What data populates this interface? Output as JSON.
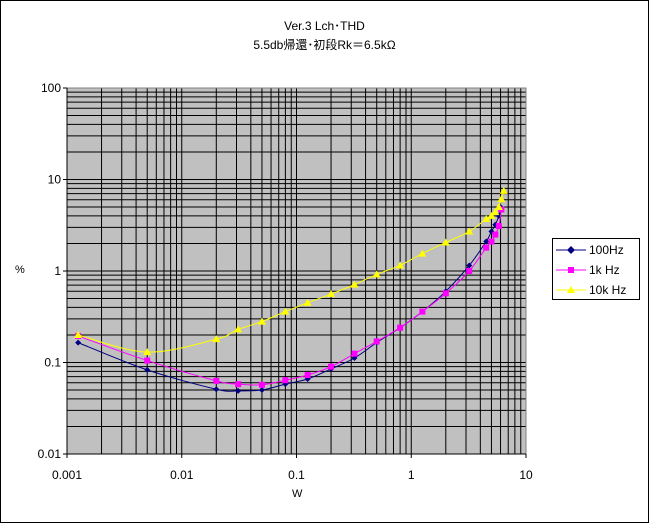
{
  "chart_data": {
    "type": "scatter",
    "title": "Ver.3 Lch･THD",
    "subtitle": "5.5db帰還･初段Rk＝6.5kΩ",
    "xlabel": "W",
    "ylabel": "%",
    "xscale": "log",
    "yscale": "log",
    "xlim": [
      0.001,
      10
    ],
    "ylim": [
      0.01,
      100
    ],
    "xticks": [
      "0.001",
      "0.01",
      "0.1",
      "1",
      "10"
    ],
    "yticks": [
      "100",
      "10",
      "1",
      "0.1",
      "0.01"
    ],
    "grid": true,
    "legend_position": "right",
    "series": [
      {
        "name": "100Hz",
        "color": "#000080",
        "marker": "diamond",
        "x": [
          0.00125,
          0.005,
          0.02,
          0.031,
          0.05,
          0.08,
          0.125,
          0.2,
          0.32,
          0.5,
          0.8,
          1.25,
          2.0,
          3.2,
          4.5,
          5.0,
          5.4,
          5.8,
          6.0
        ],
        "y": [
          0.165,
          0.083,
          0.051,
          0.049,
          0.05,
          0.058,
          0.066,
          0.085,
          0.112,
          0.165,
          0.24,
          0.36,
          0.6,
          1.15,
          2.1,
          2.7,
          3.2,
          4.0,
          5.0
        ]
      },
      {
        "name": "1k Hz",
        "color": "#ff00ff",
        "marker": "square",
        "x": [
          0.00125,
          0.005,
          0.02,
          0.031,
          0.05,
          0.08,
          0.125,
          0.2,
          0.32,
          0.5,
          0.8,
          1.25,
          2.0,
          3.2,
          4.5,
          5.0,
          5.4,
          5.8,
          6.1
        ],
        "y": [
          0.195,
          0.105,
          0.063,
          0.058,
          0.057,
          0.064,
          0.073,
          0.09,
          0.125,
          0.17,
          0.24,
          0.36,
          0.57,
          1.0,
          1.8,
          2.1,
          2.5,
          3.1,
          4.7
        ]
      },
      {
        "name": "10k Hz",
        "color": "#ffff00",
        "marker": "triangle",
        "x": [
          0.00125,
          0.005,
          0.02,
          0.031,
          0.05,
          0.08,
          0.125,
          0.2,
          0.32,
          0.5,
          0.8,
          1.25,
          2.0,
          3.2,
          4.5,
          5.0,
          5.4,
          5.8,
          6.1,
          6.4
        ],
        "y": [
          0.2,
          0.13,
          0.18,
          0.23,
          0.28,
          0.36,
          0.45,
          0.56,
          0.71,
          0.92,
          1.15,
          1.55,
          2.05,
          2.7,
          3.7,
          4.0,
          4.4,
          5.0,
          6.1,
          7.5
        ]
      }
    ]
  }
}
